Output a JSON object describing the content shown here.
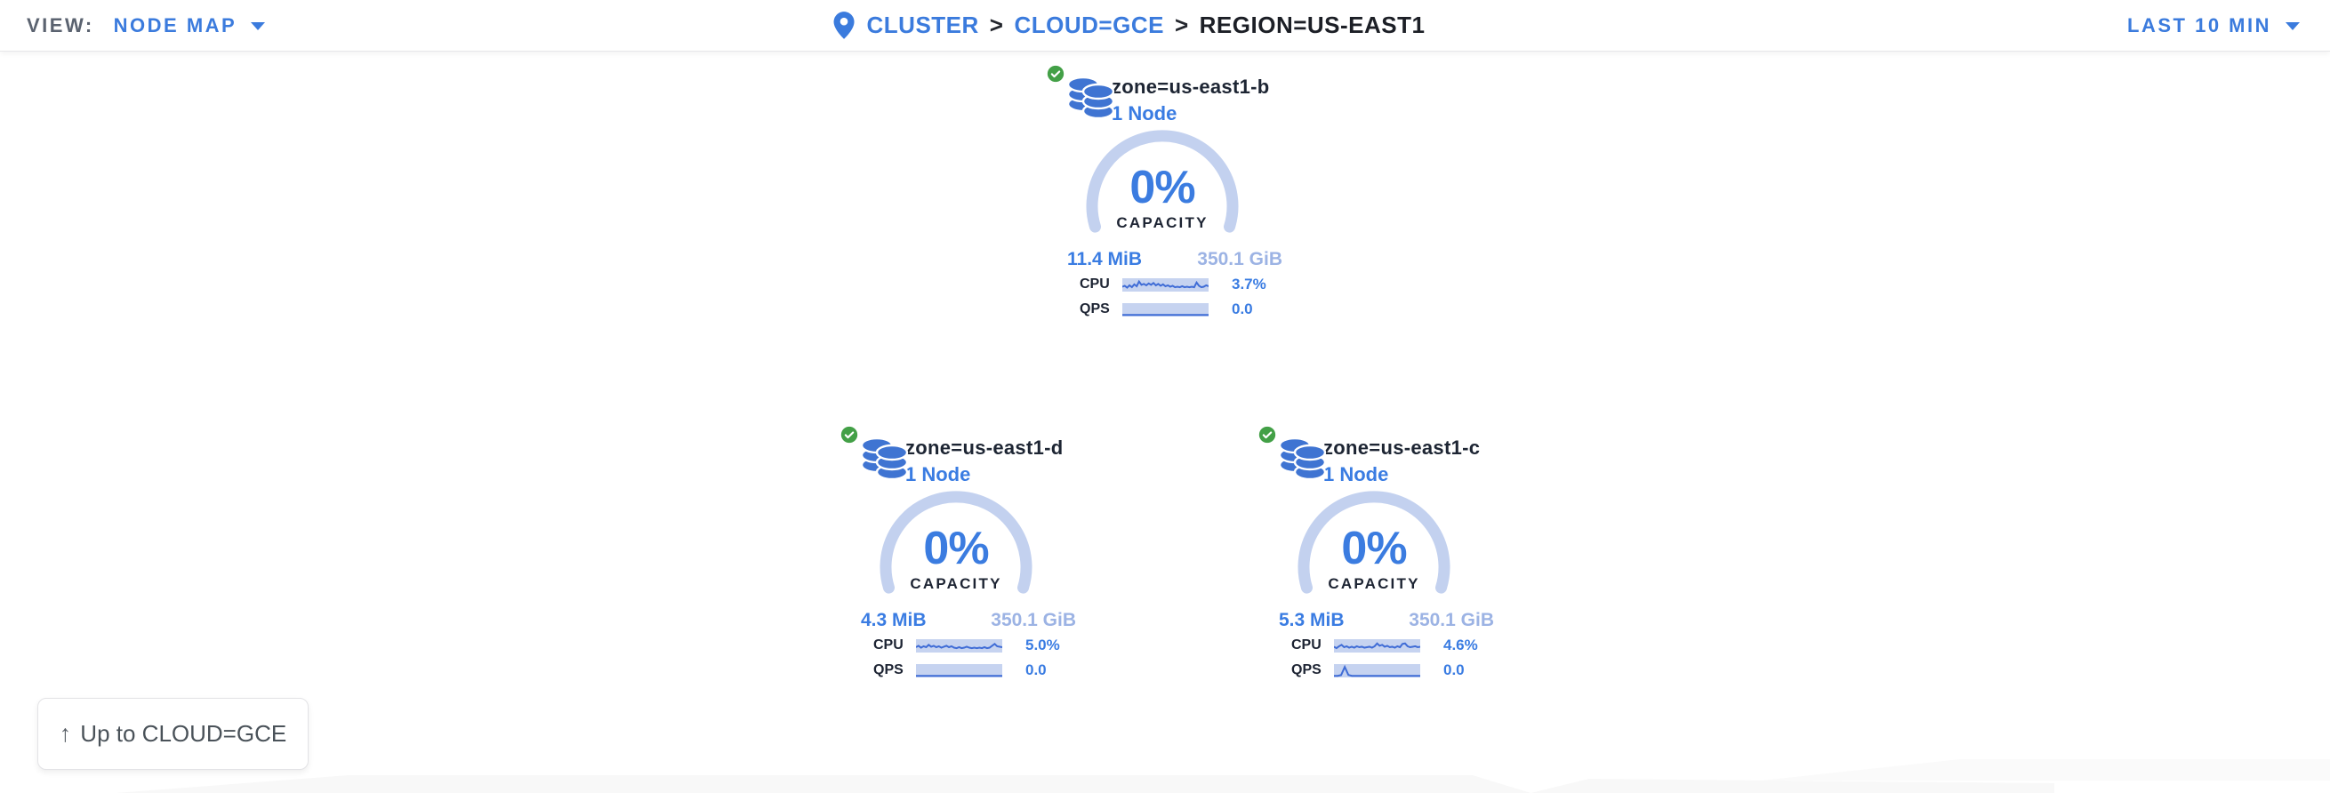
{
  "topbar": {
    "view_label": "VIEW:",
    "view_value": "NODE MAP",
    "separator": ">",
    "breadcrumb": [
      {
        "label": "CLUSTER"
      },
      {
        "label": "CLOUD=GCE"
      },
      {
        "label": "REGION=US-EAST1"
      }
    ],
    "time_range": "LAST 10 MIN"
  },
  "localities": [
    {
      "name": "zone=us-east1-b",
      "nodes": "1 Node",
      "status": "healthy",
      "capacity_pct": "0%",
      "capacity_label": "CAPACITY",
      "capacity_used": "11.4 MiB",
      "capacity_total": "350.1 GiB",
      "cpu_label": "CPU",
      "cpu_value": "3.7%",
      "qps_label": "QPS",
      "qps_value": "0.0",
      "cpu_spark": [
        0.35,
        0.45,
        0.25,
        0.5,
        0.3,
        0.6,
        0.4,
        0.9,
        0.55,
        0.65,
        0.5,
        0.7,
        0.55,
        0.75,
        0.5,
        0.65,
        0.45,
        0.6,
        0.4,
        0.5,
        0.35,
        0.45,
        0.3,
        0.35,
        0.3,
        0.4,
        0.3,
        0.35,
        0.3,
        0.35,
        0.3,
        0.8,
        0.45,
        0.3,
        0.35,
        0.5,
        0.4
      ],
      "qps_spark": [
        0,
        0,
        0,
        0,
        0,
        0,
        0,
        0,
        0,
        0,
        0,
        0,
        0,
        0,
        0,
        0,
        0,
        0,
        0,
        0,
        0,
        0,
        0,
        0,
        0
      ]
    },
    {
      "name": "zone=us-east1-d",
      "nodes": "1 Node",
      "status": "healthy",
      "capacity_pct": "0%",
      "capacity_label": "CAPACITY",
      "capacity_used": "4.3 MiB",
      "capacity_total": "350.1 GiB",
      "cpu_label": "CPU",
      "cpu_value": "5.0%",
      "qps_label": "QPS",
      "qps_value": "0.0",
      "cpu_spark": [
        0.4,
        0.55,
        0.35,
        0.5,
        0.4,
        0.65,
        0.45,
        0.55,
        0.4,
        0.5,
        0.35,
        0.45,
        0.55,
        0.4,
        0.5,
        0.35,
        0.3,
        0.4,
        0.3,
        0.35,
        0.45,
        0.35,
        0.3,
        0.35,
        0.3,
        0.35,
        0.3,
        0.4,
        0.3,
        0.35,
        0.55,
        0.75,
        0.5,
        0.45,
        0.4
      ],
      "qps_spark": [
        0,
        0,
        0,
        0,
        0,
        0,
        0,
        0,
        0,
        0,
        0,
        0,
        0,
        0,
        0,
        0,
        0,
        0,
        0,
        0,
        0,
        0,
        0,
        0,
        0
      ]
    },
    {
      "name": "zone=us-east1-c",
      "nodes": "1 Node",
      "status": "healthy",
      "capacity_pct": "0%",
      "capacity_label": "CAPACITY",
      "capacity_used": "5.3 MiB",
      "capacity_total": "350.1 GiB",
      "cpu_label": "CPU",
      "cpu_value": "4.6%",
      "qps_label": "QPS",
      "qps_value": "0.0",
      "cpu_spark": [
        0.45,
        0.3,
        0.5,
        0.65,
        0.4,
        0.5,
        0.35,
        0.45,
        0.35,
        0.5,
        0.4,
        0.45,
        0.35,
        0.4,
        0.45,
        0.35,
        0.5,
        0.8,
        0.55,
        0.65,
        0.45,
        0.55,
        0.4,
        0.45,
        0.35,
        0.5,
        0.4,
        0.75,
        0.8,
        0.5,
        0.4,
        0.45,
        0.5,
        0.4,
        0.45
      ],
      "qps_spark": [
        0,
        0,
        0.08,
        0.95,
        0.1,
        0,
        0,
        0,
        0,
        0,
        0,
        0,
        0,
        0,
        0,
        0,
        0,
        0,
        0,
        0,
        0,
        0,
        0,
        0,
        0
      ]
    }
  ],
  "up_button": {
    "icon": "↑",
    "label": "Up to CLOUD=GCE"
  },
  "colors": {
    "accent_blue": "#3b7bdd",
    "value_blue": "#3a7ce2",
    "gauge_arc": "#c3d1ef",
    "spark_bg": "#c6d3f0",
    "spark_line": "#3f6cd6",
    "total_light_blue": "#9cb3e4",
    "dark_navy": "#1d2433",
    "healthy_green": "#43a047"
  }
}
